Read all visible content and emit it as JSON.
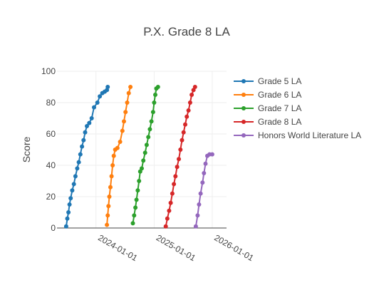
{
  "chart_data": {
    "type": "line",
    "title": "P.X. Grade 8 LA",
    "xlabel": "",
    "ylabel": "Score",
    "ylim": [
      0,
      100
    ],
    "yticks": [
      0,
      20,
      40,
      60,
      80,
      100
    ],
    "xlim": [
      "2023-05-01",
      "2026-04-01"
    ],
    "xticks": [
      "2024-01-01",
      "2025-01-01",
      "2026-01-01"
    ],
    "grid": true,
    "legend_position": "right",
    "series": [
      {
        "name": "Grade 5 LA",
        "color": "#1f77b4",
        "points": [
          [
            "2023-06-28",
            1
          ],
          [
            "2023-07-05",
            6
          ],
          [
            "2023-07-12",
            10
          ],
          [
            "2023-07-19",
            15
          ],
          [
            "2023-07-26",
            19
          ],
          [
            "2023-08-05",
            24
          ],
          [
            "2023-08-15",
            28
          ],
          [
            "2023-08-25",
            33
          ],
          [
            "2023-09-05",
            38
          ],
          [
            "2023-09-15",
            42
          ],
          [
            "2023-09-25",
            47
          ],
          [
            "2023-10-05",
            52
          ],
          [
            "2023-10-15",
            56
          ],
          [
            "2023-10-25",
            61
          ],
          [
            "2023-11-05",
            65
          ],
          [
            "2023-11-20",
            67
          ],
          [
            "2023-12-05",
            70
          ],
          [
            "2023-12-20",
            77
          ],
          [
            "2024-01-10",
            80
          ],
          [
            "2024-01-25",
            84
          ],
          [
            "2024-02-10",
            86
          ],
          [
            "2024-02-25",
            87
          ],
          [
            "2024-03-10",
            88
          ],
          [
            "2024-03-15",
            90
          ]
        ]
      },
      {
        "name": "Grade 6 LA",
        "color": "#ff7f0e",
        "points": [
          [
            "2024-03-10",
            2
          ],
          [
            "2024-03-15",
            8
          ],
          [
            "2024-03-20",
            14
          ],
          [
            "2024-03-25",
            20
          ],
          [
            "2024-04-01",
            26
          ],
          [
            "2024-04-08",
            33
          ],
          [
            "2024-04-15",
            40
          ],
          [
            "2024-04-22",
            46
          ],
          [
            "2024-05-01",
            50
          ],
          [
            "2024-05-15",
            51
          ],
          [
            "2024-06-01",
            55
          ],
          [
            "2024-06-15",
            62
          ],
          [
            "2024-06-25",
            68
          ],
          [
            "2024-07-05",
            74
          ],
          [
            "2024-07-15",
            80
          ],
          [
            "2024-07-25",
            86
          ],
          [
            "2024-08-05",
            90
          ]
        ]
      },
      {
        "name": "Grade 7 LA",
        "color": "#2ca02c",
        "points": [
          [
            "2024-08-20",
            3
          ],
          [
            "2024-08-28",
            8
          ],
          [
            "2024-09-05",
            13
          ],
          [
            "2024-09-12",
            18
          ],
          [
            "2024-09-20",
            24
          ],
          [
            "2024-09-28",
            30
          ],
          [
            "2024-10-05",
            36
          ],
          [
            "2024-10-15",
            38
          ],
          [
            "2024-10-25",
            43
          ],
          [
            "2024-11-05",
            48
          ],
          [
            "2024-11-15",
            53
          ],
          [
            "2024-11-25",
            58
          ],
          [
            "2024-12-05",
            63
          ],
          [
            "2024-12-15",
            68
          ],
          [
            "2024-12-25",
            74
          ],
          [
            "2025-01-01",
            80
          ],
          [
            "2025-01-08",
            85
          ],
          [
            "2025-01-15",
            89
          ],
          [
            "2025-01-25",
            90
          ]
        ]
      },
      {
        "name": "Grade 8 LA",
        "color": "#d62728",
        "points": [
          [
            "2025-03-15",
            1
          ],
          [
            "2025-03-25",
            6
          ],
          [
            "2025-04-05",
            11
          ],
          [
            "2025-04-15",
            16
          ],
          [
            "2025-04-25",
            22
          ],
          [
            "2025-05-05",
            28
          ],
          [
            "2025-05-15",
            33
          ],
          [
            "2025-05-25",
            39
          ],
          [
            "2025-06-05",
            44
          ],
          [
            "2025-06-15",
            50
          ],
          [
            "2025-06-25",
            56
          ],
          [
            "2025-07-05",
            61
          ],
          [
            "2025-07-15",
            66
          ],
          [
            "2025-07-25",
            71
          ],
          [
            "2025-08-05",
            75
          ],
          [
            "2025-08-15",
            80
          ],
          [
            "2025-08-25",
            85
          ],
          [
            "2025-09-05",
            88
          ],
          [
            "2025-09-15",
            90
          ]
        ]
      },
      {
        "name": "Honors World Literature LA",
        "color": "#9467bd",
        "points": [
          [
            "2025-09-20",
            1
          ],
          [
            "2025-10-01",
            8
          ],
          [
            "2025-10-10",
            15
          ],
          [
            "2025-10-20",
            22
          ],
          [
            "2025-11-01",
            29
          ],
          [
            "2025-11-10",
            35
          ],
          [
            "2025-11-20",
            41
          ],
          [
            "2025-12-01",
            46
          ],
          [
            "2025-12-15",
            47
          ],
          [
            "2026-01-01",
            47
          ]
        ]
      }
    ]
  }
}
